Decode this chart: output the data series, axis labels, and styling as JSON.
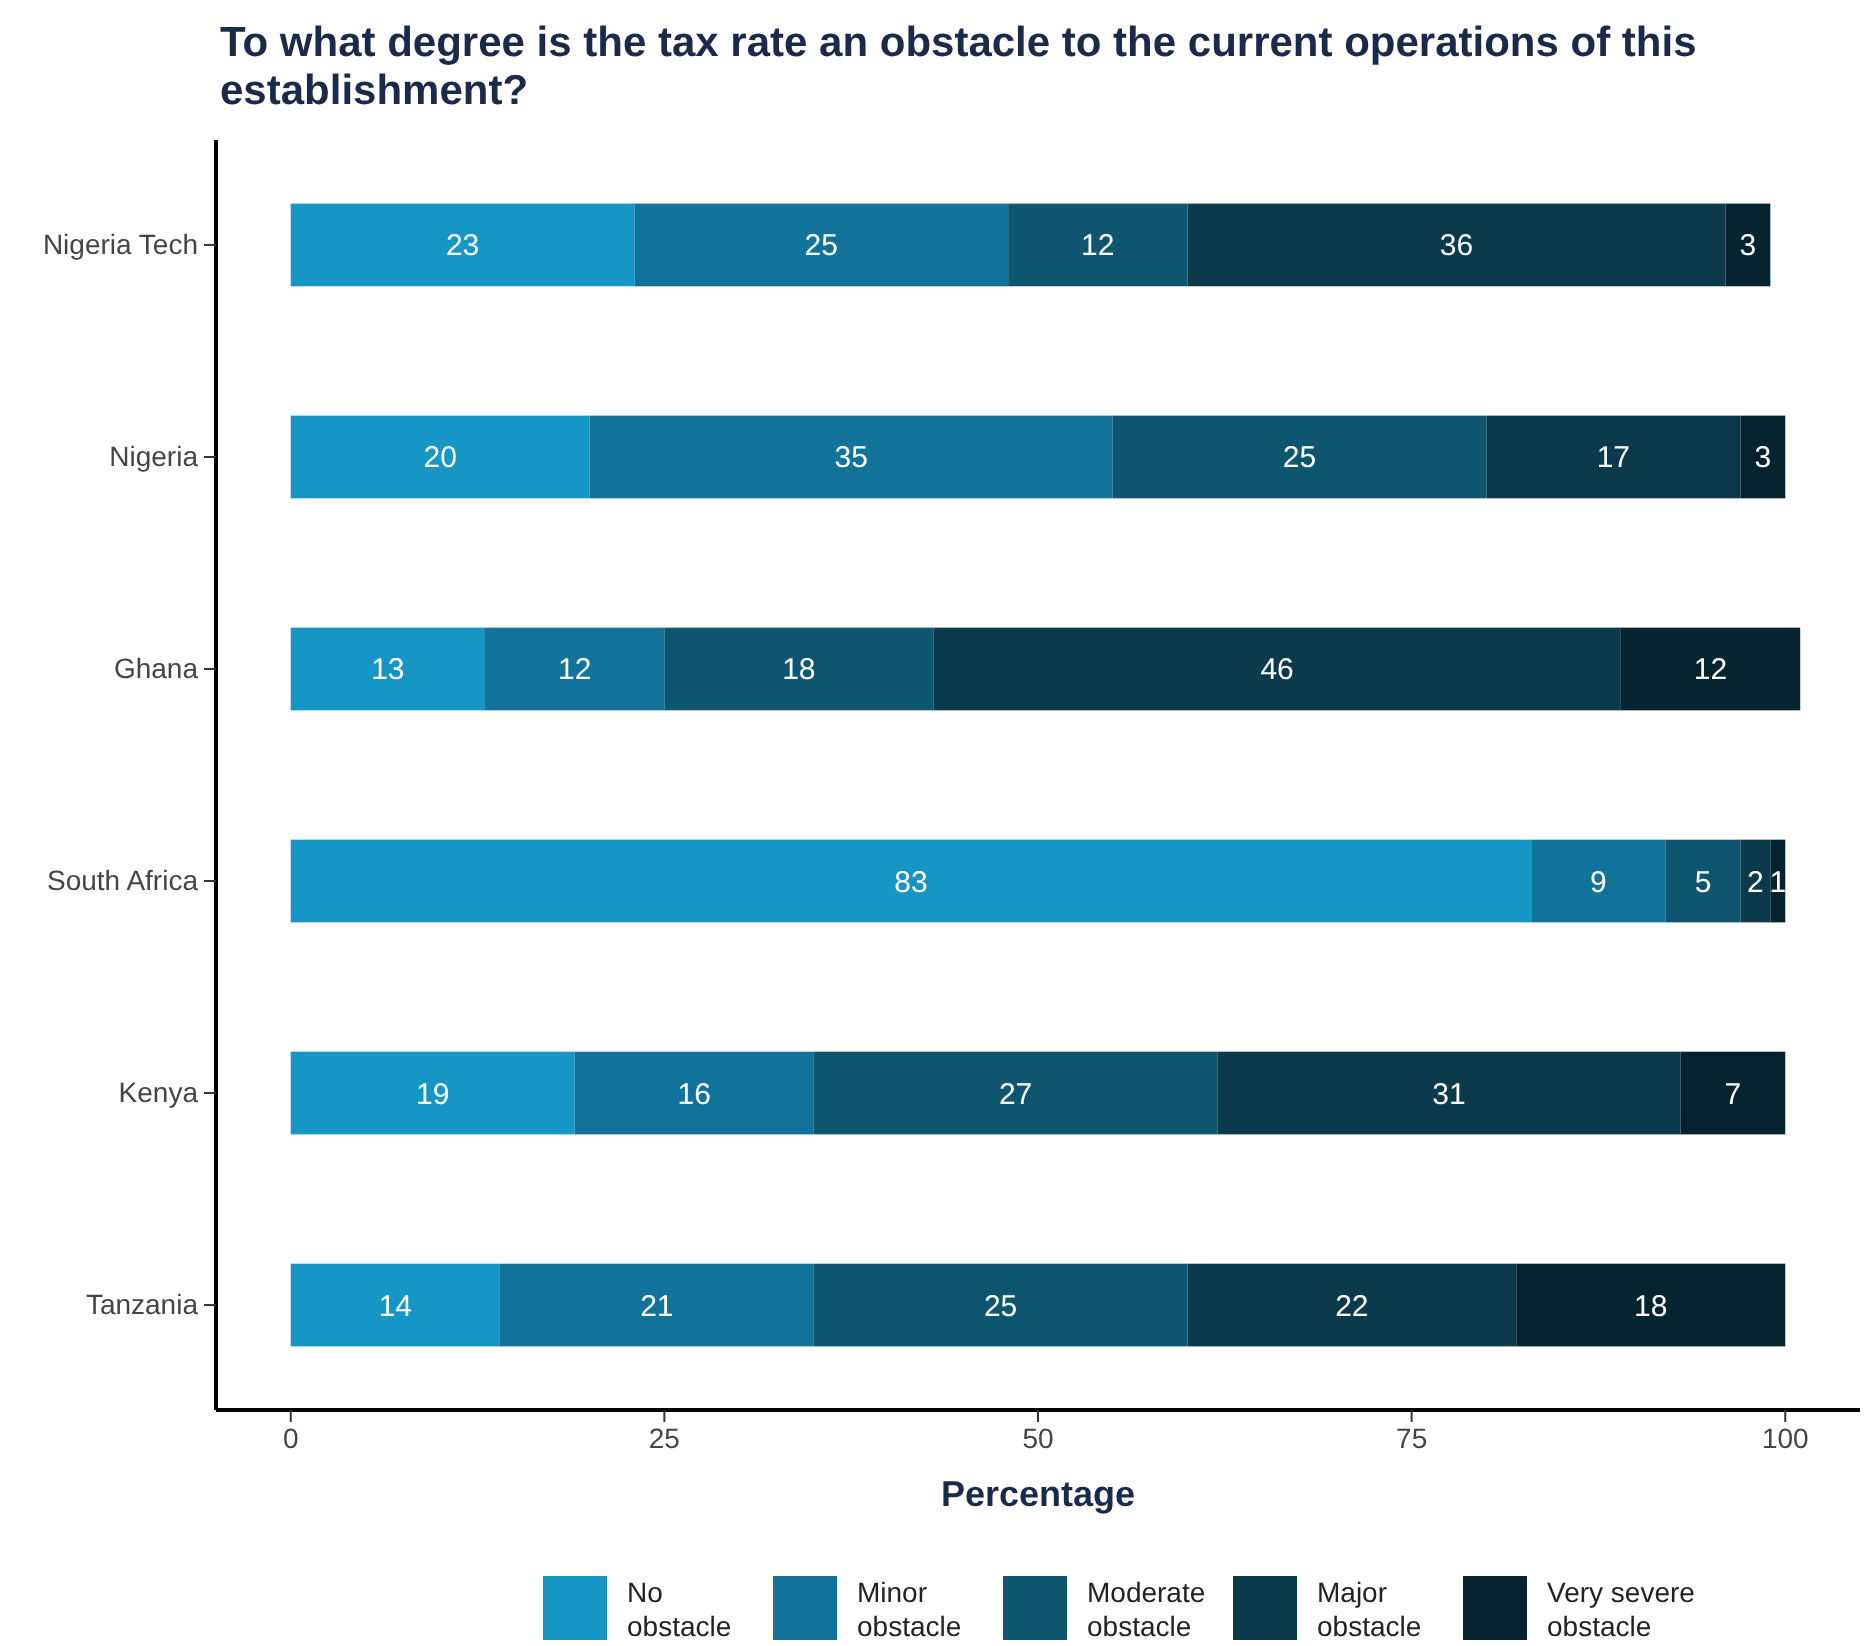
{
  "chart_data": {
    "type": "bar",
    "orientation": "horizontal",
    "stacked": true,
    "title": "To what degree is the tax rate an obstacle to the current operations of this establishment?",
    "xlabel": "Percentage",
    "categories": [
      "Nigeria Tech",
      "Nigeria",
      "Ghana",
      "South Africa",
      "Kenya",
      "Tanzania"
    ],
    "series": [
      {
        "name": "No obstacle",
        "color": "#1696c4",
        "values": [
          23,
          20,
          13,
          83,
          19,
          14
        ]
      },
      {
        "name": "Minor obstacle",
        "color": "#117399",
        "values": [
          25,
          35,
          12,
          9,
          16,
          21
        ]
      },
      {
        "name": "Moderate obstacle",
        "color": "#0e5670",
        "values": [
          12,
          25,
          18,
          5,
          27,
          25
        ]
      },
      {
        "name": "Major obstacle",
        "color": "#0a3a4b",
        "values": [
          36,
          17,
          46,
          2,
          31,
          22
        ]
      },
      {
        "name": "Very severe obstacle",
        "color": "#06242f",
        "values": [
          3,
          3,
          12,
          1,
          7,
          18
        ]
      }
    ],
    "xlim": [
      -5,
      105
    ],
    "xticks": [
      0,
      25,
      50,
      75,
      100
    ],
    "grid": false,
    "legend": "bottom",
    "data_labels": true
  }
}
